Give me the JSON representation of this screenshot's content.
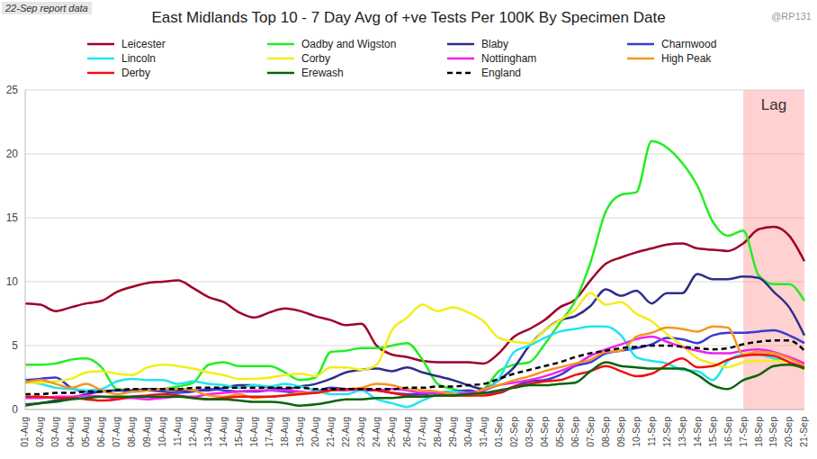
{
  "chart_data": {
    "type": "line",
    "title": "East Midlands Top 10 - 7 Day Avg of +ve Tests Per 100K By Specimen Date",
    "subtitle": "22-Sep report data",
    "annotations": [
      {
        "text": "Lag",
        "x_start": "17-Sep",
        "x_end": "21-Sep"
      },
      {
        "text": "@RP131"
      }
    ],
    "categories": [
      "01-Aug",
      "02-Aug",
      "03-Aug",
      "04-Aug",
      "05-Aug",
      "06-Aug",
      "07-Aug",
      "08-Aug",
      "09-Aug",
      "10-Aug",
      "11-Aug",
      "12-Aug",
      "13-Aug",
      "14-Aug",
      "15-Aug",
      "16-Aug",
      "17-Aug",
      "18-Aug",
      "19-Aug",
      "20-Aug",
      "21-Aug",
      "22-Aug",
      "23-Aug",
      "24-Aug",
      "25-Aug",
      "26-Aug",
      "27-Aug",
      "28-Aug",
      "29-Aug",
      "30-Aug",
      "31-Aug",
      "01-Sep",
      "02-Sep",
      "03-Sep",
      "04-Sep",
      "05-Sep",
      "06-Sep",
      "07-Sep",
      "08-Sep",
      "09-Sep",
      "10-Sep",
      "11-Sep",
      "12-Sep",
      "13-Sep",
      "14-Sep",
      "15-Sep",
      "16-Sep",
      "17-Sep",
      "18-Sep",
      "19-Sep",
      "20-Sep",
      "21-Sep"
    ],
    "series": [
      {
        "name": "Leicester",
        "color": "#a0002a",
        "values": [
          8.3,
          8.2,
          7.7,
          8.0,
          8.3,
          8.5,
          9.2,
          9.6,
          9.9,
          10.0,
          10.1,
          9.5,
          8.8,
          8.4,
          7.6,
          7.2,
          7.6,
          7.9,
          7.7,
          7.3,
          7.0,
          6.6,
          6.7,
          5.0,
          4.3,
          4.1,
          3.8,
          3.7,
          3.7,
          3.7,
          3.6,
          4.4,
          5.7,
          6.3,
          7.0,
          8.0,
          8.6,
          10.1,
          11.4,
          11.9,
          12.3,
          12.6,
          12.9,
          13.0,
          12.6,
          12.5,
          12.4,
          13.0,
          14.1,
          14.3,
          13.6,
          11.6
        ]
      },
      {
        "name": "Oadby and Wigston",
        "color": "#22ee22",
        "values": [
          3.5,
          3.5,
          3.6,
          3.9,
          4.0,
          3.3,
          1.6,
          1.5,
          1.5,
          1.6,
          1.8,
          2.1,
          3.5,
          3.7,
          3.4,
          3.4,
          3.4,
          2.9,
          2.3,
          2.5,
          4.5,
          4.6,
          4.8,
          4.8,
          5.0,
          5.2,
          3.9,
          2.0,
          1.6,
          1.3,
          1.6,
          3.0,
          3.5,
          3.7,
          5.1,
          6.8,
          8.5,
          11.5,
          15.5,
          16.8,
          17.0,
          21.0,
          20.5,
          19.3,
          17.5,
          14.7,
          13.6,
          14.0,
          10.5,
          9.8,
          9.8,
          8.5
        ]
      },
      {
        "name": "Blaby",
        "color": "#2e2e8a",
        "values": [
          0.4,
          0.5,
          0.7,
          0.9,
          1.2,
          1.4,
          1.5,
          1.5,
          1.6,
          1.6,
          1.5,
          1.5,
          1.5,
          1.7,
          1.9,
          1.9,
          1.7,
          1.6,
          1.8,
          2.0,
          2.4,
          2.9,
          3.1,
          3.2,
          3.0,
          3.3,
          2.9,
          2.6,
          2.3,
          1.9,
          1.6,
          2.3,
          3.3,
          5.0,
          6.2,
          7.0,
          7.3,
          8.1,
          9.4,
          8.9,
          9.3,
          8.3,
          9.1,
          9.1,
          10.6,
          10.2,
          10.2,
          10.4,
          10.3,
          9.2,
          8.0,
          5.8
        ]
      },
      {
        "name": "Charnwood",
        "color": "#3a3ad4",
        "values": [
          2.3,
          2.4,
          2.5,
          1.7,
          1.4,
          1.4,
          1.5,
          1.4,
          1.5,
          1.4,
          1.3,
          1.4,
          1.6,
          1.5,
          1.4,
          1.4,
          1.5,
          1.4,
          1.3,
          1.4,
          1.7,
          1.6,
          1.5,
          1.5,
          1.3,
          1.2,
          1.2,
          1.3,
          1.4,
          1.5,
          1.3,
          1.3,
          1.8,
          2.2,
          2.3,
          2.7,
          3.4,
          3.7,
          4.4,
          4.6,
          4.8,
          5.1,
          5.6,
          5.5,
          5.2,
          5.8,
          6.0,
          6.0,
          6.1,
          6.2,
          5.8,
          5.2
        ]
      },
      {
        "name": "Lincoln",
        "color": "#22e4ee",
        "values": [
          2.2,
          2.0,
          1.7,
          1.6,
          1.5,
          1.6,
          2.2,
          2.4,
          2.3,
          2.3,
          2.0,
          2.2,
          2.0,
          1.9,
          1.7,
          1.9,
          1.8,
          2.0,
          1.8,
          1.5,
          1.2,
          1.2,
          1.5,
          0.8,
          0.5,
          0.2,
          0.7,
          1.2,
          1.4,
          1.3,
          1.5,
          2.4,
          4.5,
          5.0,
          5.6,
          6.1,
          6.3,
          6.5,
          6.5,
          5.8,
          4.1,
          3.8,
          3.6,
          3.1,
          3.0,
          2.3,
          3.8,
          4.3,
          4.3,
          4.0,
          3.7,
          3.2
        ]
      },
      {
        "name": "Corby",
        "color": "#f2ee1a",
        "values": [
          2.1,
          2.1,
          2.2,
          2.4,
          2.9,
          3.0,
          2.8,
          2.7,
          3.3,
          3.5,
          3.4,
          3.2,
          2.9,
          2.7,
          2.4,
          2.4,
          2.5,
          2.7,
          2.8,
          2.6,
          3.3,
          3.3,
          3.1,
          3.5,
          6.2,
          7.2,
          8.2,
          7.7,
          8.0,
          7.6,
          6.9,
          5.6,
          5.3,
          5.2,
          6.2,
          7.0,
          7.8,
          9.1,
          8.2,
          8.4,
          7.5,
          6.9,
          5.9,
          5.0,
          4.0,
          3.6,
          3.3,
          3.7,
          3.8,
          3.8,
          3.7,
          3.1
        ]
      },
      {
        "name": "Nottingham",
        "color": "#ee22ee",
        "values": [
          0.9,
          0.9,
          1.0,
          1.0,
          1.1,
          1.0,
          0.9,
          0.9,
          0.8,
          0.9,
          1.0,
          1.0,
          1.2,
          1.3,
          1.4,
          1.5,
          1.5,
          1.5,
          1.4,
          1.3,
          1.5,
          1.5,
          1.6,
          1.5,
          1.6,
          1.5,
          1.3,
          1.3,
          1.2,
          1.3,
          1.5,
          1.9,
          2.1,
          2.3,
          2.6,
          3.0,
          3.5,
          4.2,
          4.7,
          5.1,
          5.5,
          5.7,
          5.3,
          4.9,
          4.6,
          4.4,
          4.4,
          4.6,
          4.7,
          4.5,
          4.1,
          3.6
        ]
      },
      {
        "name": "High Peak",
        "color": "#f5961e",
        "values": [
          2.1,
          2.3,
          2.0,
          1.7,
          2.0,
          1.5,
          1.2,
          1.4,
          1.5,
          1.6,
          1.6,
          1.5,
          1.1,
          1.0,
          1.2,
          0.9,
          1.0,
          1.1,
          1.3,
          1.3,
          1.5,
          1.6,
          1.7,
          2.0,
          1.9,
          1.6,
          1.5,
          1.4,
          1.2,
          1.1,
          1.6,
          1.9,
          2.3,
          2.6,
          3.0,
          3.3,
          3.6,
          3.9,
          4.5,
          4.6,
          5.7,
          6.0,
          6.4,
          6.3,
          6.1,
          6.5,
          6.4,
          4.3,
          4.5,
          4.4,
          4.0,
          3.4
        ]
      },
      {
        "name": "Derby",
        "color": "#ee1111",
        "values": [
          1.0,
          1.0,
          0.9,
          0.9,
          0.8,
          0.7,
          0.8,
          1.0,
          1.1,
          1.2,
          1.1,
          0.9,
          0.8,
          0.9,
          1.0,
          1.0,
          1.0,
          1.1,
          1.2,
          1.3,
          1.5,
          1.6,
          1.6,
          1.5,
          1.3,
          1.1,
          1.0,
          1.1,
          1.1,
          1.1,
          1.1,
          1.3,
          1.8,
          2.0,
          2.2,
          2.3,
          2.7,
          3.0,
          3.4,
          3.0,
          2.6,
          2.8,
          3.5,
          4.0,
          3.3,
          3.4,
          3.9,
          4.2,
          4.3,
          4.2,
          3.7,
          3.3
        ]
      },
      {
        "name": "Erewash",
        "color": "#0a640a",
        "values": [
          0.3,
          0.5,
          0.6,
          0.8,
          0.9,
          1.0,
          1.0,
          1.0,
          1.0,
          1.0,
          1.0,
          0.9,
          0.8,
          0.8,
          0.7,
          0.6,
          0.6,
          0.5,
          0.3,
          0.4,
          0.6,
          0.8,
          0.8,
          0.9,
          0.9,
          1.0,
          1.0,
          1.1,
          1.1,
          1.2,
          1.3,
          1.5,
          1.7,
          1.9,
          1.9,
          2.0,
          2.1,
          3.0,
          3.7,
          3.4,
          3.3,
          3.2,
          3.2,
          3.2,
          2.7,
          1.9,
          1.6,
          2.3,
          2.7,
          3.4,
          3.5,
          3.2
        ]
      },
      {
        "name": "England",
        "color": "#000000",
        "line_style": "dashed",
        "values": [
          1.2,
          1.2,
          1.3,
          1.3,
          1.4,
          1.4,
          1.5,
          1.6,
          1.6,
          1.6,
          1.6,
          1.7,
          1.7,
          1.7,
          1.7,
          1.7,
          1.7,
          1.7,
          1.7,
          1.6,
          1.6,
          1.6,
          1.6,
          1.6,
          1.6,
          1.7,
          1.7,
          1.8,
          1.8,
          1.9,
          2.0,
          2.4,
          2.8,
          3.1,
          3.4,
          3.7,
          4.1,
          4.4,
          4.6,
          4.8,
          4.9,
          5.0,
          5.0,
          4.9,
          4.8,
          4.7,
          4.8,
          5.1,
          5.3,
          5.4,
          5.4,
          4.6
        ]
      }
    ],
    "ylim": [
      0,
      25
    ],
    "yticks": [
      0,
      5,
      10,
      15,
      20,
      25
    ],
    "grid": true,
    "legend": "top"
  }
}
